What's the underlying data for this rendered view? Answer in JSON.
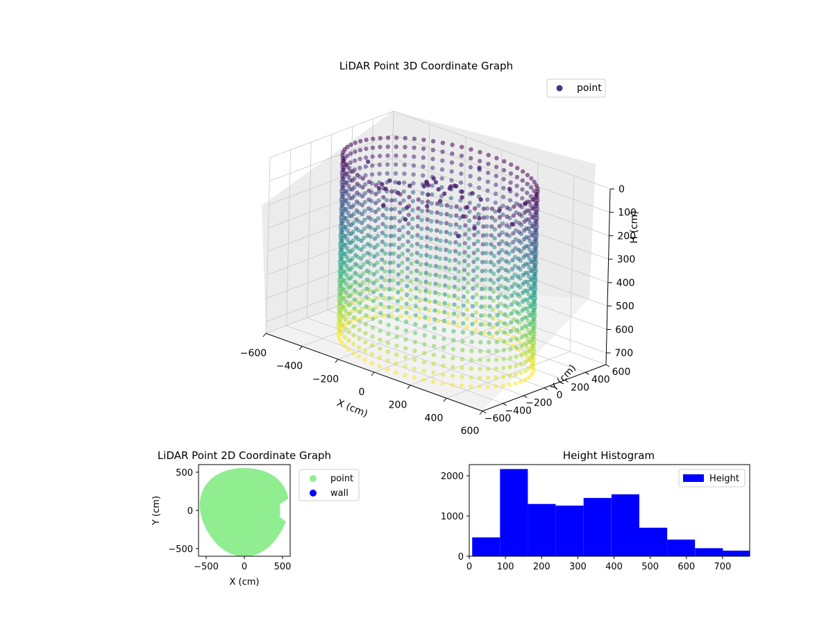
{
  "chart_data": [
    {
      "type": "scatter",
      "title": "LiDAR Point 3D Coordinate Graph",
      "xlabel": "X (cm)",
      "ylabel": "Y (cm)",
      "zlabel": "H (cm)",
      "xlim": [
        -600,
        600
      ],
      "ylim": [
        -600,
        600
      ],
      "zlim": [
        0,
        750
      ],
      "z_inverted": true,
      "xticks": [
        "−600",
        "−400",
        "−200",
        "0",
        "200",
        "400",
        "600"
      ],
      "yticks": [
        "−600",
        "−400",
        "−200",
        "0",
        "200",
        "400",
        "600"
      ],
      "zticks": [
        "0",
        "100",
        "200",
        "300",
        "400",
        "500",
        "600",
        "700"
      ],
      "grid": true,
      "legend": {
        "placement": "top-right",
        "entries": [
          "point"
        ]
      },
      "colormap": "viridis",
      "series": [
        {
          "name": "point",
          "shape": "cylindrical wall of vertical point columns",
          "radius_cm": 470,
          "column_count": 64,
          "height_range_cm": [
            0,
            760
          ]
        }
      ]
    },
    {
      "type": "scatter",
      "title": "LiDAR Point 2D Coordinate Graph",
      "xlabel": "X (cm)",
      "ylabel": "Y (cm)",
      "xlim": [
        -600,
        600
      ],
      "ylim": [
        -600,
        600
      ],
      "xticks": [
        "−500",
        "0",
        "500"
      ],
      "yticks": [
        "−500",
        "0",
        "500"
      ],
      "legend": {
        "placement": "outside-right",
        "entries": [
          "point",
          "wall"
        ]
      },
      "series": [
        {
          "name": "point",
          "color": "#90ee90",
          "region": "filled disc, radius ≈ 580 cm, notch near x ≈ 500, y ≈ 0"
        },
        {
          "name": "wall",
          "color": "#0000ff",
          "points": []
        }
      ]
    },
    {
      "type": "bar",
      "subtype": "histogram",
      "title": "Height Histogram",
      "xlim": [
        0,
        775
      ],
      "ylim": [
        0,
        2280
      ],
      "xticks": [
        "0",
        "100",
        "200",
        "300",
        "400",
        "500",
        "600",
        "700"
      ],
      "yticks": [
        "0",
        "1000",
        "2000"
      ],
      "legend": {
        "placement": "top-right",
        "entries": [
          "Height"
        ]
      },
      "bin_edges": [
        8,
        85,
        162,
        239,
        316,
        393,
        470,
        547,
        624,
        701,
        778
      ],
      "series": [
        {
          "name": "Height",
          "color": "#0000ff",
          "values": [
            470,
            2170,
            1300,
            1260,
            1450,
            1540,
            710,
            415,
            200,
            140
          ]
        }
      ]
    }
  ]
}
